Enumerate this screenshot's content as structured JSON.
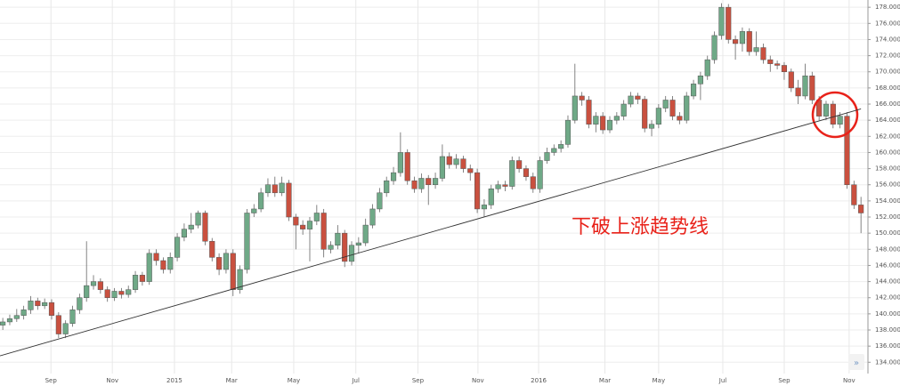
{
  "chart_data": {
    "type": "candlestick",
    "open": [
      138.6,
      139.0,
      139.4,
      139.8,
      140.5,
      141.6,
      141.0,
      141.4,
      139.8,
      137.5,
      138.8,
      140.5,
      142.0,
      143.5,
      144.0,
      143.0,
      142.0,
      142.8,
      142.4,
      143.0,
      144.8,
      144.0,
      147.5,
      146.6,
      145.5,
      147.0,
      149.5,
      150.5,
      151.0,
      152.5,
      149.0,
      147.0,
      145.5,
      147.5,
      143.0,
      145.5,
      152.5,
      153.0,
      155.0,
      156.0,
      155.0,
      156.2,
      152.0,
      151.0,
      150.5,
      151.5,
      152.5,
      148.0,
      148.5,
      150.0,
      146.5,
      148.5,
      148.8,
      151.0,
      153.0,
      155.0,
      156.5,
      157.5,
      160.0,
      156.5,
      155.5,
      156.8,
      156.0,
      156.8,
      159.5,
      158.5,
      159.2,
      158.0,
      157.5,
      153.0,
      153.5,
      155.5,
      156.0,
      155.8,
      159.0,
      158.0,
      157.0,
      155.5,
      159.0,
      160.0,
      160.5,
      161.0,
      164.0,
      167.0,
      166.5,
      163.5,
      164.5,
      162.8,
      164.0,
      164.5,
      166.0,
      167.0,
      166.6,
      163.0,
      163.5,
      165.5,
      166.5,
      164.5,
      164.0,
      167.0,
      168.5,
      169.5,
      171.5,
      174.5,
      178.0,
      174.0,
      173.5,
      175.0,
      172.5,
      173.0,
      171.5,
      171.0,
      170.8,
      170.0,
      168.0,
      167.0,
      169.5,
      166.5,
      164.5,
      166.0,
      163.5,
      164.5,
      156.0,
      153.5
    ],
    "high": [
      139.5,
      139.9,
      140.6,
      141.0,
      142.2,
      142.0,
      141.9,
      141.8,
      140.2,
      139.2,
      141.0,
      142.5,
      149.0,
      144.8,
      144.4,
      143.4,
      143.2,
      143.2,
      143.5,
      145.3,
      145.2,
      148.0,
      148.0,
      147.0,
      147.6,
      150.0,
      151.2,
      152.5,
      152.8,
      152.8,
      149.4,
      147.5,
      148.0,
      148.0,
      146.0,
      153.0,
      153.6,
      155.6,
      156.8,
      157.0,
      157.0,
      156.6,
      152.4,
      151.6,
      152.0,
      153.5,
      153.0,
      149.0,
      151.0,
      150.4,
      149.0,
      149.5,
      151.8,
      153.6,
      155.6,
      157.0,
      158.2,
      162.5,
      160.4,
      157.0,
      157.4,
      157.2,
      157.5,
      161.0,
      160.0,
      159.8,
      159.6,
      158.5,
      158.0,
      154.2,
      156.0,
      156.5,
      156.5,
      159.5,
      159.5,
      158.4,
      157.5,
      159.5,
      160.6,
      161.0,
      161.5,
      164.6,
      171.0,
      167.5,
      167.0,
      165.0,
      165.0,
      164.5,
      165.0,
      166.5,
      167.5,
      167.4,
      167.0,
      164.0,
      166.0,
      167.0,
      167.0,
      165.0,
      167.5,
      169.0,
      170.0,
      172.0,
      175.0,
      178.5,
      178.4,
      174.5,
      175.5,
      175.4,
      175.0,
      173.5,
      172.0,
      171.4,
      171.2,
      170.4,
      169.0,
      171.0,
      170.0,
      167.0,
      166.4,
      166.4,
      165.0,
      165.0,
      156.5,
      154.5
    ],
    "low": [
      138.0,
      138.6,
      139.0,
      139.3,
      140.0,
      140.5,
      140.6,
      139.3,
      137.0,
      137.0,
      138.4,
      140.0,
      141.5,
      143.0,
      142.5,
      141.5,
      141.6,
      141.9,
      142.0,
      142.6,
      143.5,
      143.6,
      146.0,
      145.0,
      145.0,
      146.5,
      149.0,
      150.0,
      150.6,
      148.5,
      146.5,
      144.8,
      145.0,
      142.2,
      142.5,
      145.0,
      152.0,
      152.6,
      154.5,
      154.5,
      154.6,
      151.5,
      148.0,
      149.8,
      146.5,
      151.0,
      147.0,
      147.5,
      148.0,
      145.8,
      146.0,
      147.5,
      148.4,
      150.6,
      152.6,
      154.5,
      156.0,
      157.0,
      156.0,
      155.0,
      155.0,
      153.5,
      155.5,
      156.4,
      158.0,
      158.0,
      157.5,
      156.5,
      152.5,
      152.0,
      153.0,
      155.0,
      155.2,
      155.4,
      157.5,
      156.5,
      155.0,
      155.0,
      158.6,
      159.6,
      160.0,
      160.6,
      163.6,
      165.8,
      163.0,
      162.5,
      162.3,
      162.4,
      163.5,
      164.0,
      165.6,
      166.0,
      162.5,
      162.0,
      163.0,
      165.0,
      164.0,
      163.5,
      163.6,
      166.6,
      166.5,
      169.0,
      171.0,
      174.0,
      173.5,
      171.5,
      172.5,
      172.0,
      172.0,
      171.0,
      170.0,
      170.3,
      169.0,
      167.5,
      166.0,
      166.6,
      166.0,
      164.0,
      164.0,
      163.0,
      163.0,
      155.5,
      153.0,
      150.0
    ],
    "close": [
      139.0,
      139.4,
      139.8,
      140.5,
      141.6,
      141.0,
      141.4,
      139.8,
      137.5,
      138.8,
      140.5,
      142.0,
      143.5,
      144.0,
      143.0,
      142.0,
      142.8,
      142.4,
      143.0,
      144.8,
      144.0,
      147.5,
      146.6,
      145.5,
      147.0,
      149.5,
      150.5,
      151.0,
      152.5,
      149.0,
      147.0,
      145.5,
      147.5,
      143.0,
      145.5,
      152.5,
      153.0,
      155.0,
      156.0,
      155.0,
      156.2,
      152.0,
      151.0,
      150.5,
      151.5,
      152.5,
      148.0,
      148.5,
      150.0,
      146.5,
      148.5,
      148.8,
      151.0,
      153.0,
      155.0,
      156.5,
      157.5,
      160.0,
      156.5,
      155.5,
      156.8,
      156.0,
      156.8,
      159.5,
      158.5,
      159.2,
      158.0,
      157.5,
      153.0,
      153.5,
      155.5,
      156.0,
      155.8,
      159.0,
      158.0,
      157.0,
      155.5,
      159.0,
      160.0,
      160.5,
      161.0,
      164.0,
      167.0,
      166.5,
      163.5,
      164.5,
      162.8,
      164.0,
      164.5,
      166.0,
      167.0,
      166.6,
      163.0,
      163.5,
      165.5,
      166.5,
      164.5,
      164.0,
      167.0,
      168.5,
      169.5,
      171.5,
      174.5,
      178.0,
      174.0,
      173.5,
      175.0,
      172.5,
      173.0,
      171.5,
      171.0,
      170.8,
      170.0,
      168.0,
      167.0,
      169.5,
      166.5,
      164.5,
      166.0,
      163.5,
      164.5,
      156.0,
      153.5,
      152.5
    ],
    "up_color": "#6fa987",
    "down_color": "#c9503f",
    "xlim": [
      -0.4,
      124
    ],
    "xticks": [
      {
        "value": 6.9,
        "label": "Sep"
      },
      {
        "value": 15.7,
        "label": "Nov"
      },
      {
        "value": 24.6,
        "label": "2015"
      },
      {
        "value": 32.8,
        "label": "Mar"
      },
      {
        "value": 41.7,
        "label": "May"
      },
      {
        "value": 50.6,
        "label": "Jul"
      },
      {
        "value": 59.5,
        "label": "Sep"
      },
      {
        "value": 68.1,
        "label": "Nov"
      },
      {
        "value": 76.8,
        "label": "2016"
      },
      {
        "value": 86.3,
        "label": "Mar"
      },
      {
        "value": 94,
        "label": "May"
      },
      {
        "value": 103.2,
        "label": "Jul"
      },
      {
        "value": 112,
        "label": "Sep"
      },
      {
        "value": 121.3,
        "label": "Nov"
      }
    ],
    "ylim": [
      132.6,
      178.9
    ],
    "yticks": [
      {
        "value": 134,
        "label": "134.000"
      },
      {
        "value": 136,
        "label": "136.000"
      },
      {
        "value": 138,
        "label": "138.000"
      },
      {
        "value": 140,
        "label": "140.000"
      },
      {
        "value": 142,
        "label": "142.000"
      },
      {
        "value": 144,
        "label": "144.000"
      },
      {
        "value": 146,
        "label": "146.000"
      },
      {
        "value": 148,
        "label": "148.000"
      },
      {
        "value": 150,
        "label": "150.000"
      },
      {
        "value": 152,
        "label": "152.000"
      },
      {
        "value": 154,
        "label": "154.000"
      },
      {
        "value": 156,
        "label": "156.000"
      },
      {
        "value": 158,
        "label": "158.000"
      },
      {
        "value": 160,
        "label": "160.000"
      },
      {
        "value": 162,
        "label": "162.000"
      },
      {
        "value": 164,
        "label": "164.000"
      },
      {
        "value": 166,
        "label": "166.000"
      },
      {
        "value": 168,
        "label": "168.000"
      },
      {
        "value": 170,
        "label": "170.000"
      },
      {
        "value": 172,
        "label": "172.000"
      },
      {
        "value": 174,
        "label": "174.000"
      },
      {
        "value": 176,
        "label": "176.000"
      },
      {
        "value": 178,
        "label": "178.000"
      }
    ],
    "grid": true,
    "trendline": {
      "x": [
        -0.4,
        123
      ],
      "y": [
        134.8,
        165.4
      ]
    },
    "annotation": "下破上涨趋势线"
  }
}
